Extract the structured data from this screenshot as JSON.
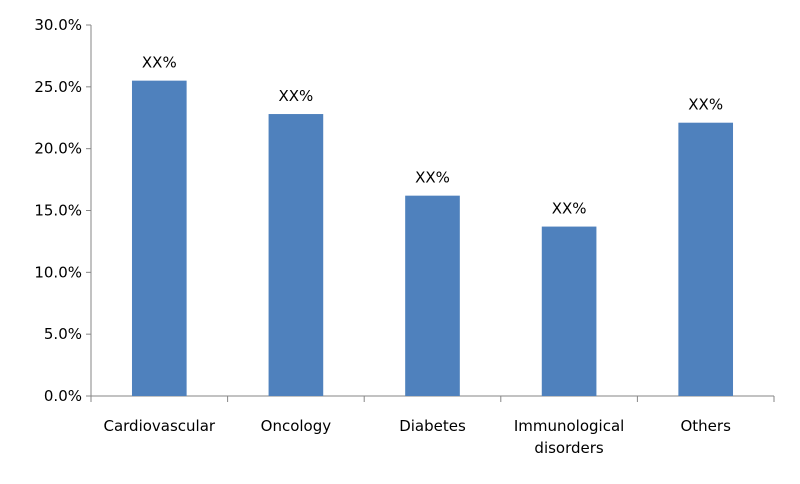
{
  "chart_data": {
    "type": "bar",
    "title": "",
    "xlabel": "",
    "ylabel": "",
    "ylim": [
      0,
      30
    ],
    "yticks": [
      "0.0%",
      "5.0%",
      "10.0%",
      "15.0%",
      "20.0%",
      "25.0%",
      "30.0%"
    ],
    "categories": [
      [
        "Cardiovascular"
      ],
      [
        "Oncology"
      ],
      [
        "Diabetes"
      ],
      [
        "Immunological",
        "disorders"
      ],
      [
        "Others"
      ]
    ],
    "values": [
      25.5,
      22.8,
      16.2,
      13.7,
      22.1
    ],
    "data_labels": [
      "XX%",
      "XX%",
      "XX%",
      "XX%",
      "XX%"
    ],
    "bar_color": "#4f81bd",
    "grid": false,
    "legend": "none"
  }
}
